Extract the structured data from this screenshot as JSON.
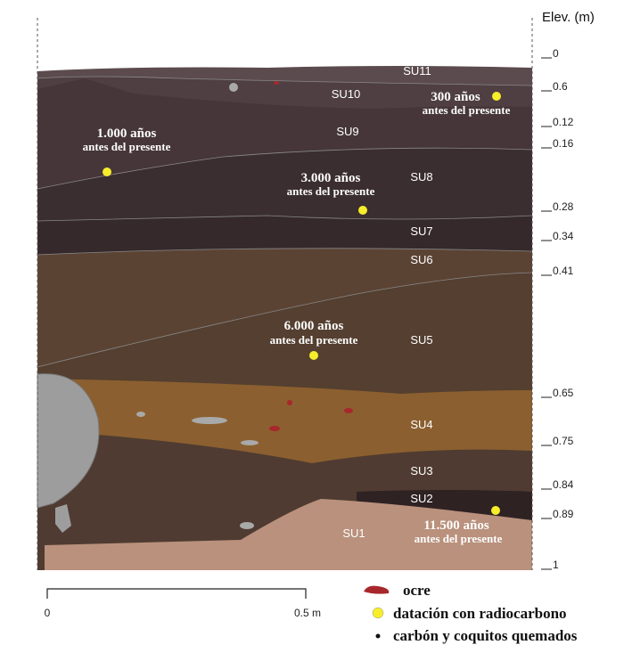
{
  "header": {
    "elevation_title": "Elev. (m)"
  },
  "elevations": [
    "0",
    "0.6",
    "0.12",
    "0.16",
    "0.28",
    "0.34",
    "0.41",
    "0.65",
    "0.75",
    "0.84",
    "0.89",
    "1"
  ],
  "units": [
    "SU11",
    "SU10",
    "SU9",
    "SU8",
    "SU7",
    "SU6",
    "SU5",
    "SU4",
    "SU3",
    "SU2",
    "SU1"
  ],
  "dates": [
    {
      "age": "300 años",
      "note": "antes del presente"
    },
    {
      "age": "1.000 años",
      "note": "antes del presente"
    },
    {
      "age": "3.000 años",
      "note": "antes del presente"
    },
    {
      "age": "6.000 años",
      "note": "antes del presente"
    },
    {
      "age": "11.500 años",
      "note": "antes del presente"
    }
  ],
  "scale": {
    "start": "0",
    "end": "0.5 m"
  },
  "legend": [
    "ocre",
    "datación con radiocarbono",
    "carbón y coquitos quemados"
  ]
}
